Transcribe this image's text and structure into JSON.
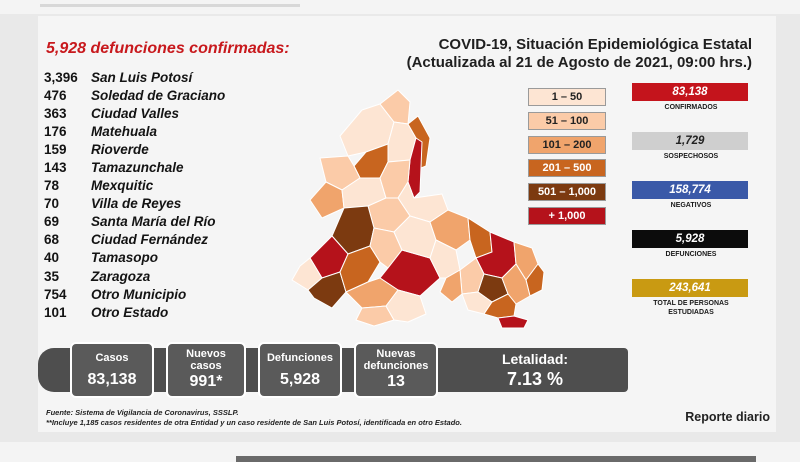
{
  "header": {
    "title_line1": "COVID-19, Situación Epidemiológica Estatal",
    "title_line2": "(Actualizada al 21 de Agosto de 2021, 09:00 hrs.)",
    "deaths_heading": "5,928 defunciones confirmadas:"
  },
  "chart_data": {
    "type": "table",
    "title": "5,928 defunciones confirmadas:",
    "categories": [
      "San Luis Potosí",
      "Soledad de Graciano",
      "Ciudad Valles",
      "Matehuala",
      "Rioverde",
      "Tamazunchale",
      "Mexquitic",
      "Villa de Reyes",
      "Santa María del Río",
      "Ciudad Fernández",
      "Tamasopo",
      "Zaragoza",
      "Otro Municipio",
      "Otro Estado"
    ],
    "values": [
      3396,
      476,
      363,
      176,
      159,
      143,
      78,
      70,
      69,
      68,
      40,
      35,
      754,
      101
    ],
    "value_labels": [
      "3,396",
      "476",
      "363",
      "176",
      "159",
      "143",
      "78",
      "70",
      "69",
      "68",
      "40",
      "35",
      "754",
      "101"
    ]
  },
  "legend": [
    {
      "label": "1 – 50",
      "bg": "#fde5d3",
      "fg": "#222222"
    },
    {
      "label": "51 – 100",
      "bg": "#fbcba8",
      "fg": "#222222"
    },
    {
      "label": "101 – 200",
      "bg": "#f0a46c",
      "fg": "#222222"
    },
    {
      "label": "201 – 500",
      "bg": "#c8651f",
      "fg": "#ffffff"
    },
    {
      "label": "501 – 1,000",
      "bg": "#7c3a10",
      "fg": "#ffffff"
    },
    {
      "label": "+ 1,000",
      "bg": "#b5121b",
      "fg": "#ffffff"
    }
  ],
  "stats": [
    {
      "value": "83,138",
      "label": "CONFIRMADOS",
      "bg": "#c4141c",
      "fg": "#ffffff"
    },
    {
      "value": "1,729",
      "label": "SOSPECHOSOS",
      "bg": "#cfcfcf",
      "fg": "#222222"
    },
    {
      "value": "158,774",
      "label": "NEGATIVOS",
      "bg": "#3a59a8",
      "fg": "#ffffff"
    },
    {
      "value": "5,928",
      "label": "DEFUNCIONES",
      "bg": "#0c0c0c",
      "fg": "#ffffff"
    },
    {
      "value": "243,641",
      "label": "TOTAL DE PERSONAS ESTUDIADAS",
      "bg": "#c99a12",
      "fg": "#ffffff"
    }
  ],
  "summary": {
    "casos_label": "Casos",
    "casos_value": "83,138",
    "nuevos_casos_label1": "Nuevos",
    "nuevos_casos_label2": "casos",
    "nuevos_casos_value": "991*",
    "defunciones_label": "Defunciones",
    "defunciones_value": "5,928",
    "nuevas_def_label1": "Nuevas",
    "nuevas_def_label2": "defunciones",
    "nuevas_def_value": "13",
    "letalidad_label": "Letalidad:",
    "letalidad_value": "7.13 %"
  },
  "footer": {
    "source": "Fuente: Sistema de Vigilancia de Coronavirus, SSSLP.",
    "note": "**Incluye 1,185 casos residentes de otra Entidad y un caso residente de San Luis Potosí, identificada en otro Estado.",
    "reporte": "Reporte diario"
  }
}
